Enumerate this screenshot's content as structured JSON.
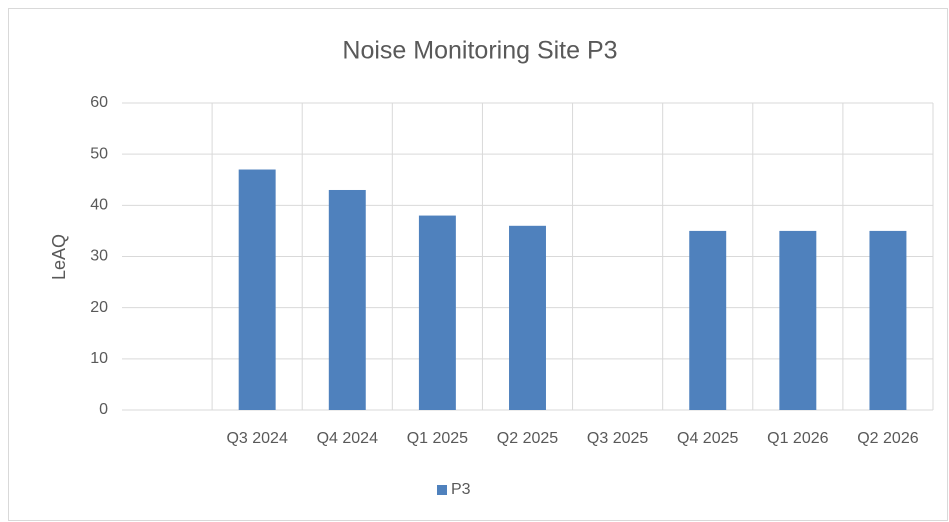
{
  "chart_data": {
    "type": "bar",
    "title": "Noise Monitoring Site P3",
    "y_label": "LeAQ",
    "categories": [
      null,
      "Q3 2024",
      "Q4 2024",
      "Q1 2025",
      "Q2 2025",
      "Q3 2025",
      "Q4 2025",
      "Q1 2026",
      "Q2 2026"
    ],
    "series": [
      {
        "name": "P3",
        "color": "#4f81bd",
        "values": [
          null,
          47,
          43,
          38,
          36,
          null,
          35,
          35,
          35
        ]
      }
    ],
    "ylim": [
      0,
      60
    ],
    "yticks": [
      0,
      10,
      20,
      30,
      40,
      50,
      60
    ],
    "grid": true,
    "legend": "bottom"
  }
}
